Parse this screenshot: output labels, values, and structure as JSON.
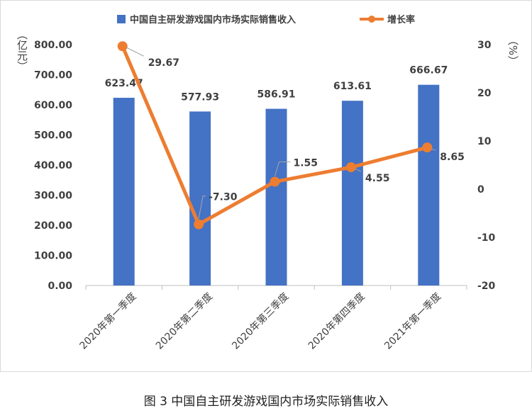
{
  "chart_data": {
    "type": "bar",
    "categories": [
      "2020年第一季度",
      "2020年第二季度",
      "2020年第三季度",
      "2020年第四季度",
      "2021年第一季度"
    ],
    "series": [
      {
        "name": "中国自主研发游戏国内市场实际销售收入",
        "type": "bar",
        "axis": "left",
        "values": [
          623.47,
          577.93,
          586.91,
          613.61,
          666.67
        ],
        "labels": [
          "623.47",
          "577.93",
          "586.91",
          "613.61",
          "666.67"
        ]
      },
      {
        "name": "增长率",
        "type": "line",
        "axis": "right",
        "values": [
          29.67,
          -7.3,
          1.55,
          4.55,
          8.65
        ],
        "labels": [
          "29.67",
          "-7.30",
          "1.55",
          "4.55",
          "8.65"
        ]
      }
    ],
    "y_left": {
      "label": "（亿元）",
      "range": [
        0,
        800
      ],
      "ticks": [
        "0.00",
        "100.00",
        "200.00",
        "300.00",
        "400.00",
        "500.00",
        "600.00",
        "700.00",
        "800.00"
      ]
    },
    "y_right": {
      "label": "（%）",
      "range": [
        -20,
        30
      ],
      "ticks": [
        "-20",
        "-10",
        "0",
        "10",
        "20",
        "30"
      ]
    },
    "legend_position": "top",
    "grid": false,
    "colors": {
      "bar": "#4472c4",
      "line": "#ed7d31",
      "axis": "#bfbfbf",
      "text": "#404040"
    }
  },
  "caption": "图 3  中国自主研发游戏国内市场实际销售收入"
}
